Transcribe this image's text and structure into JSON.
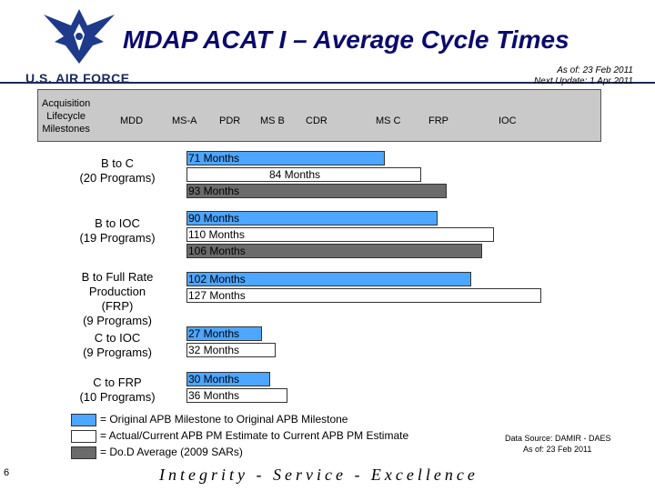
{
  "header": {
    "title": "MDAP ACAT I – Average Cycle Times",
    "org": "U.S. AIR FORCE",
    "as_of": "As of: 23 Feb 2011",
    "next_update": "Next Update: 1 Apr 2011"
  },
  "milestones": {
    "row_label": [
      "Acquisition",
      "Lifecycle",
      "Milestones"
    ],
    "items": [
      "MDD",
      "MS-A",
      "PDR",
      "MS B",
      "CDR",
      "MS C",
      "FRP",
      "IOC"
    ]
  },
  "chart_data": {
    "type": "bar",
    "orientation": "horizontal",
    "unit": "Months",
    "categories": [
      "B to C (20 Programs)",
      "B to IOC (19 Programs)",
      "B to Full Rate Production (FRP) (9 Programs)",
      "C to IOC (9 Programs)",
      "C to FRP (10 Programs)"
    ],
    "category_lines": [
      [
        "B to C",
        "(20 Programs)"
      ],
      [
        "B to IOC",
        "(19 Programs)"
      ],
      [
        "B to Full Rate",
        "Production",
        "(FRP)",
        "(9 Programs)"
      ],
      [
        "C to IOC",
        "(9 Programs)"
      ],
      [
        "C to FRP",
        "(10 Programs)"
      ]
    ],
    "series": [
      {
        "name": "Original APB Milestone to Original APB Milestone",
        "color": "#4da6ff",
        "values": [
          71,
          90,
          102,
          27,
          30
        ]
      },
      {
        "name": "Actual/Current APB PM Estimate to Current APB PM Estimate",
        "color": "#ffffff",
        "values": [
          84,
          110,
          127,
          32,
          36
        ]
      },
      {
        "name": "Do.D Average (2009 SARs)",
        "color": "#6b6b6b",
        "values": [
          93,
          106,
          null,
          null,
          null
        ]
      }
    ],
    "data_labels": [
      [
        "71 Months",
        "84 Months",
        "93 Months"
      ],
      [
        "90 Months",
        "110 Months",
        "106 Months"
      ],
      [
        "102 Months",
        "127 Months",
        null
      ],
      [
        "27 Months",
        "32 Months",
        null
      ],
      [
        "30 Months",
        "36 Months",
        null
      ]
    ],
    "legend": [
      "= Original APB Milestone to Original APB Milestone",
      "= Actual/Current APB PM Estimate to Current APB PM Estimate",
      "= Do.D Average (2009 SARs)"
    ]
  },
  "footer": {
    "source": "Data Source: DAMIR - DAES",
    "source_asof": "As of: 23 Feb 2011",
    "slide_number": "6",
    "motto": "Integrity - Service - Excellence"
  }
}
